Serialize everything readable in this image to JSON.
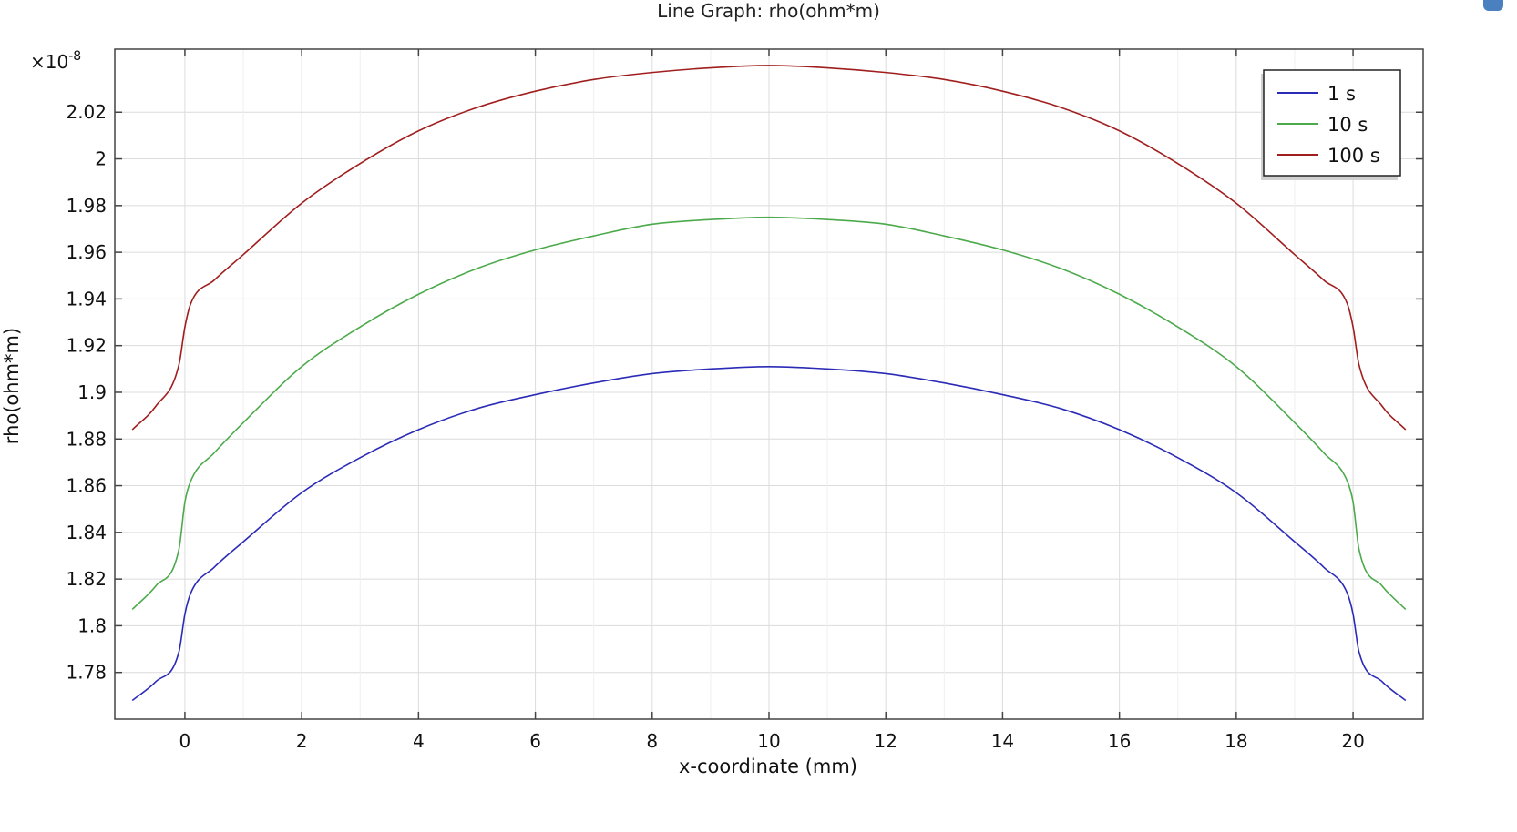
{
  "chart_data": {
    "type": "line",
    "title": "Line Graph: rho(ohm*m)",
    "xlabel": "x-coordinate (mm)",
    "ylabel": "rho(ohm*m)",
    "y_exponent_label": "×10",
    "y_exponent_power": "-8",
    "xlim": [
      -1.2,
      21.2
    ],
    "ylim": [
      1.76,
      2.047
    ],
    "xticks": [
      0,
      2,
      4,
      6,
      8,
      10,
      12,
      14,
      16,
      18,
      20
    ],
    "yticks": [
      1.78,
      1.8,
      1.82,
      1.84,
      1.86,
      1.88,
      1.9,
      1.92,
      1.94,
      1.96,
      1.98,
      2,
      2.02
    ],
    "ytick_labels": [
      "1.78",
      "1.8",
      "1.82",
      "1.84",
      "1.86",
      "1.88",
      "1.9",
      "1.92",
      "1.94",
      "1.96",
      "1.98",
      "2",
      "2.02"
    ],
    "grid": true,
    "legend_position": "top-right",
    "series": [
      {
        "name": "1 s",
        "color": "#2b2bb8",
        "x": [
          -0.9,
          -0.5,
          -0.1,
          0.0,
          0.1,
          0.5,
          1,
          2,
          3,
          4,
          5,
          6,
          7,
          8,
          9,
          10,
          11,
          12,
          13,
          14,
          15,
          16,
          17,
          18,
          19,
          19.5,
          19.9,
          20.0,
          20.1,
          20.5,
          20.9
        ],
        "y": [
          1.768,
          1.776,
          1.789,
          1.805,
          1.814,
          1.825,
          1.836,
          1.857,
          1.872,
          1.884,
          1.893,
          1.899,
          1.904,
          1.908,
          1.91,
          1.911,
          1.91,
          1.908,
          1.904,
          1.899,
          1.893,
          1.884,
          1.872,
          1.857,
          1.836,
          1.825,
          1.814,
          1.805,
          1.789,
          1.776,
          1.768
        ]
      },
      {
        "name": "10 s",
        "color": "#4caa4c",
        "x": [
          -0.9,
          -0.5,
          -0.1,
          0.0,
          0.1,
          0.5,
          1,
          2,
          3,
          4,
          5,
          6,
          7,
          8,
          9,
          10,
          11,
          12,
          13,
          14,
          15,
          16,
          17,
          18,
          19,
          19.5,
          19.9,
          20.0,
          20.1,
          20.5,
          20.9
        ],
        "y": [
          1.807,
          1.817,
          1.833,
          1.853,
          1.862,
          1.874,
          1.887,
          1.911,
          1.928,
          1.942,
          1.953,
          1.961,
          1.967,
          1.972,
          1.974,
          1.975,
          1.974,
          1.972,
          1.967,
          1.961,
          1.953,
          1.942,
          1.928,
          1.911,
          1.887,
          1.874,
          1.862,
          1.853,
          1.833,
          1.817,
          1.807
        ]
      },
      {
        "name": "100 s",
        "color": "#a01e1e",
        "x": [
          -0.9,
          -0.5,
          -0.1,
          0.0,
          0.1,
          0.5,
          1,
          2,
          3,
          4,
          5,
          6,
          7,
          8,
          9,
          10,
          11,
          12,
          13,
          14,
          15,
          16,
          17,
          18,
          19,
          19.5,
          19.9,
          20.0,
          20.1,
          20.5,
          20.9
        ],
        "y": [
          1.884,
          1.894,
          1.912,
          1.928,
          1.938,
          1.948,
          1.959,
          1.981,
          1.998,
          2.012,
          2.022,
          2.029,
          2.034,
          2.037,
          2.039,
          2.04,
          2.039,
          2.037,
          2.034,
          2.029,
          2.022,
          2.012,
          1.998,
          1.981,
          1.959,
          1.948,
          1.938,
          1.928,
          1.912,
          1.894,
          1.884
        ]
      }
    ]
  }
}
